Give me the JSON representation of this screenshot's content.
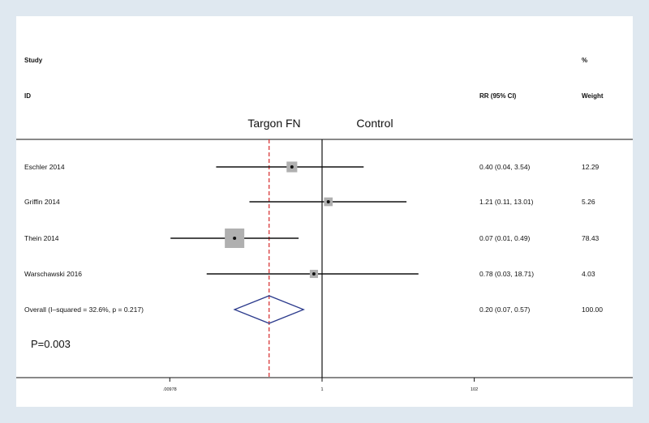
{
  "chart_data": {
    "type": "forest",
    "headers": {
      "study": "Study",
      "id": "ID",
      "estimate": "RR (95% CI)",
      "weight_pct": "%",
      "weight": "Weight"
    },
    "favors": {
      "left": "Targon FN",
      "right": "Control"
    },
    "studies": [
      {
        "id": "Eschler 2014",
        "rr": 0.4,
        "lo": 0.04,
        "hi": 3.54,
        "ci_text": "0.40 (0.04, 3.54)",
        "weight": "12.29"
      },
      {
        "id": "Griffin 2014",
        "rr": 1.21,
        "lo": 0.11,
        "hi": 13.01,
        "ci_text": "1.21 (0.11, 13.01)",
        "weight": "5.26"
      },
      {
        "id": "Thein 2014",
        "rr": 0.07,
        "lo": 0.01,
        "hi": 0.49,
        "ci_text": "0.07 (0.01, 0.49)",
        "weight": "78.43"
      },
      {
        "id": "Warschawski 2016",
        "rr": 0.78,
        "lo": 0.03,
        "hi": 18.71,
        "ci_text": "0.78 (0.03, 18.71)",
        "weight": "4.03"
      }
    ],
    "overall": {
      "id": "Overall  (I–squared = 32.6%, p = 0.217)",
      "rr": 0.2,
      "lo": 0.07,
      "hi": 0.57,
      "ci_text": "0.20 (0.07, 0.57)",
      "weight": "100.00"
    },
    "x_ticks": [
      {
        "value": 0.00978,
        "label": ".00978"
      },
      {
        "value": 1,
        "label": "1"
      },
      {
        "value": 102,
        "label": "102"
      }
    ],
    "x_scale": "log",
    "p_value": "P=0.003",
    "colors": {
      "null_line": "#111111",
      "overall_line": "#d62728",
      "diamond": "#2b3a8c",
      "box": "#b0b0b0"
    }
  }
}
